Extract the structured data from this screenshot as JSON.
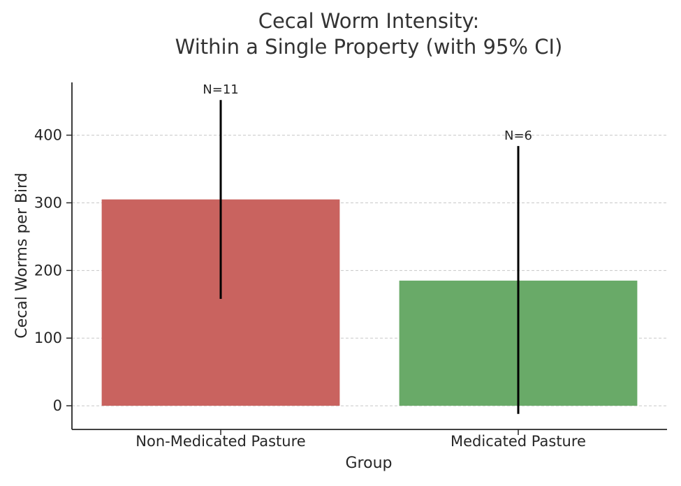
{
  "chart_data": {
    "type": "bar",
    "title_lines": [
      "Cecal Worm Intensity:",
      "Within a Single Property (with 95% CI)"
    ],
    "xlabel": "Group",
    "ylabel": "Cecal Worms per Bird",
    "categories": [
      "Non-Medicated Pasture",
      "Medicated Pasture"
    ],
    "values": [
      305,
      185
    ],
    "ci_lower": [
      158,
      -12
    ],
    "ci_upper": [
      452,
      384
    ],
    "labels": [
      "N=11",
      "N=6"
    ],
    "colors": [
      "#c9635f",
      "#69aa68"
    ],
    "error_color": "#000000",
    "ylim": [
      -35,
      478
    ],
    "yticks": [
      0,
      100,
      200,
      300,
      400
    ],
    "ytick_labels": [
      "0",
      "100",
      "200",
      "300",
      "400"
    ],
    "grid": true
  }
}
